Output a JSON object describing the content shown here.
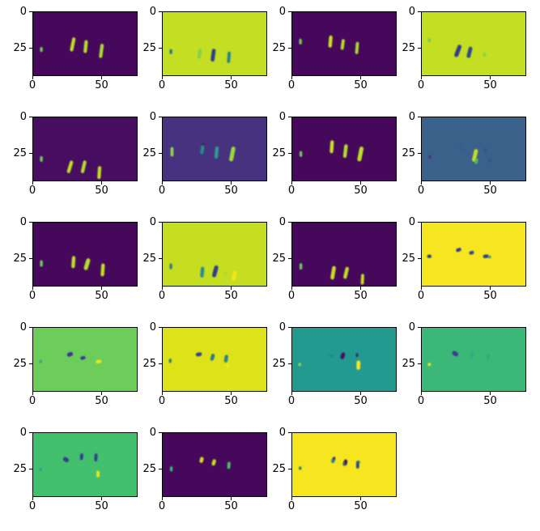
{
  "figure": {
    "kind": "matplotlib-figure",
    "background": "#ffffff",
    "grid": {
      "rows": 5,
      "cols": 4,
      "panel_count": 19
    }
  },
  "chart_data": {
    "type": "heatmap",
    "description": "Grid of 19 imshow panels (5 rows x 4 cols, last row 3 panels) showing small feature-map images in viridis colormap. Each panel has short stroke-like activations near x=6, 29, 39, 51.",
    "xticks": [
      0,
      50
    ],
    "yticks": [
      0,
      25
    ],
    "xtick_labels": [
      "0",
      "50"
    ],
    "ytick_labels": [
      "0",
      "25"
    ],
    "x_extent": [
      0,
      76
    ],
    "y_extent": [
      0,
      44
    ],
    "legend": "none",
    "grid_lines": false,
    "panels": [
      {
        "row": 0,
        "col": 0,
        "bg": "#46085b",
        "blobs": [
          [
            6,
            26,
            2,
            3.5,
            0,
            "#6ece58",
            1
          ],
          [
            29,
            22.5,
            2.5,
            10,
            12,
            "#c0df25",
            1
          ],
          [
            38.5,
            24,
            2.5,
            9,
            6,
            "#b5de2b",
            1
          ],
          [
            50,
            27,
            2.5,
            10,
            8,
            "#a8db34",
            1
          ]
        ]
      },
      {
        "row": 0,
        "col": 1,
        "bg": "#c4de24",
        "blobs": [
          [
            6,
            27.5,
            2,
            3.5,
            0,
            "#2a788e",
            1
          ],
          [
            27,
            29,
            2.5,
            7,
            8,
            "#5ec962",
            0.65
          ],
          [
            37,
            30,
            2.8,
            9,
            8,
            "#2d3e8c",
            1
          ],
          [
            48.5,
            31.5,
            2.3,
            8,
            5,
            "#26828e",
            1
          ]
        ]
      },
      {
        "row": 0,
        "col": 2,
        "bg": "#46085b",
        "blobs": [
          [
            6,
            20.5,
            2,
            4,
            0,
            "#6ece58",
            1
          ],
          [
            28,
            20.5,
            2.6,
            8.5,
            5,
            "#c8e021",
            1
          ],
          [
            37,
            22.5,
            2.3,
            7.5,
            8,
            "#b5de2b",
            1
          ],
          [
            47.5,
            25,
            2.3,
            8.5,
            5,
            "#a8db34",
            1
          ]
        ]
      },
      {
        "row": 0,
        "col": 3,
        "bg": "#c4de24",
        "blobs": [
          [
            5.5,
            19.5,
            2,
            2.5,
            0,
            "#4ac16d",
            0.75
          ],
          [
            26.5,
            27,
            3,
            9,
            22,
            "#2d3e8c",
            1
          ],
          [
            35,
            28,
            2.8,
            8,
            15,
            "#2e4a8c",
            1
          ],
          [
            46,
            29.5,
            2.5,
            3,
            0,
            "#56b870",
            0.45
          ]
        ]
      },
      {
        "row": 1,
        "col": 0,
        "bg": "#470d60",
        "blobs": [
          [
            6,
            29,
            2,
            4,
            0,
            "#6ece58",
            1
          ],
          [
            27,
            34.5,
            2.5,
            9,
            18,
            "#c0df25",
            1
          ],
          [
            37,
            34.5,
            2.5,
            9,
            14,
            "#b5de2b",
            1
          ],
          [
            48.5,
            38.5,
            2.5,
            9,
            4,
            "#c2df23",
            1
          ]
        ]
      },
      {
        "row": 1,
        "col": 1,
        "bg": "#46327e",
        "blobs": [
          [
            6.8,
            24,
            2.2,
            6.5,
            0,
            "#8ed645",
            1
          ],
          [
            29.5,
            19,
            2,
            2.5,
            0,
            "#45095c",
            0.55
          ],
          [
            29,
            22.5,
            2.5,
            6.5,
            8,
            "#26918c",
            0.9
          ],
          [
            39.5,
            24.5,
            2.6,
            8.5,
            5,
            "#2fa08b",
            0.95
          ],
          [
            51,
            25.5,
            3,
            10.5,
            12,
            "#9bd93c",
            1
          ]
        ]
      },
      {
        "row": 1,
        "col": 2,
        "bg": "#46085b",
        "blobs": [
          [
            6.3,
            25.5,
            2,
            4,
            0,
            "#6ece58",
            1
          ],
          [
            29,
            20.5,
            2.6,
            9,
            4,
            "#c8e021",
            1
          ],
          [
            39,
            23.5,
            2.6,
            9.5,
            7,
            "#b5de2b",
            1
          ],
          [
            50,
            25.5,
            3,
            10.5,
            12,
            "#c0df25",
            1
          ]
        ]
      },
      {
        "row": 1,
        "col": 3,
        "bg": "#3a6189",
        "blobs": [
          [
            6,
            27.5,
            2,
            2.2,
            0,
            "#482878",
            0.9
          ],
          [
            29,
            21,
            2.5,
            5,
            10,
            "#315a8c",
            0.55
          ],
          [
            39,
            26.5,
            2.8,
            9,
            14,
            "#c2df23",
            1
          ],
          [
            40,
            30.5,
            2.3,
            4,
            10,
            "#5ec962",
            0.8
          ],
          [
            46.5,
            23,
            2,
            3.5,
            0,
            "#3f3c85",
            0.45
          ],
          [
            50,
            30,
            2,
            3,
            0,
            "#3f3c85",
            0.4
          ]
        ]
      },
      {
        "row": 2,
        "col": 0,
        "bg": "#46085b",
        "blobs": [
          [
            6,
            28.5,
            2,
            4.5,
            0,
            "#6ece58",
            1
          ],
          [
            29.5,
            27.5,
            2.6,
            8.5,
            4,
            "#c0df25",
            1
          ],
          [
            39.5,
            29,
            3,
            8.5,
            18,
            "#b5de2b",
            1
          ],
          [
            51,
            33,
            2.6,
            9,
            4,
            "#c2df23",
            1
          ]
        ]
      },
      {
        "row": 2,
        "col": 1,
        "bg": "#c6de21",
        "blobs": [
          [
            6,
            30.5,
            2,
            4,
            0,
            "#2a788e",
            1
          ],
          [
            29,
            34.5,
            2.6,
            7.5,
            5,
            "#2a8a8e",
            1
          ],
          [
            38.5,
            34,
            3,
            8.5,
            16,
            "#2d3e8c",
            1
          ],
          [
            46,
            36,
            2,
            4,
            0,
            "#8ed645",
            0.4
          ],
          [
            52.5,
            37,
            3,
            7,
            10,
            "#f6e61c",
            0.95
          ]
        ]
      },
      {
        "row": 2,
        "col": 2,
        "bg": "#46085b",
        "blobs": [
          [
            6.3,
            30.5,
            2,
            4.5,
            0,
            "#6ece58",
            1
          ],
          [
            30,
            35,
            2.8,
            9.5,
            10,
            "#c8e021",
            1
          ],
          [
            39.5,
            35,
            2.6,
            8.5,
            14,
            "#c0df25",
            1
          ],
          [
            51.5,
            39.5,
            2.3,
            7.5,
            3,
            "#c2df23",
            1
          ]
        ]
      },
      {
        "row": 2,
        "col": 3,
        "bg": "#f5e61f",
        "blobs": [
          [
            5.5,
            23.5,
            3.2,
            2.3,
            0,
            "#2d3e8c",
            1
          ],
          [
            27,
            19,
            4,
            2.4,
            -20,
            "#2d3e8c",
            1
          ],
          [
            36.5,
            21,
            3.6,
            2.4,
            -15,
            "#32468c",
            1
          ],
          [
            47,
            23.5,
            4.2,
            2.4,
            -5,
            "#2d3e8c",
            1
          ],
          [
            49.8,
            24,
            2,
            2,
            0,
            "#26828e",
            0.85
          ]
        ]
      },
      {
        "row": 3,
        "col": 0,
        "bg": "#6ccd5a",
        "blobs": [
          [
            5.5,
            23.5,
            2,
            2.2,
            0,
            "#2a9d8f",
            0.9
          ],
          [
            27,
            18.5,
            4.4,
            2.8,
            -18,
            "#3b3591",
            1
          ],
          [
            36.5,
            21,
            3.8,
            2.4,
            -12,
            "#383c8f",
            1
          ],
          [
            48,
            23.5,
            4.2,
            2.4,
            -4,
            "#ece51b",
            1
          ]
        ]
      },
      {
        "row": 3,
        "col": 1,
        "bg": "#dde318",
        "blobs": [
          [
            5.5,
            23,
            2,
            3,
            0,
            "#2a788e",
            1
          ],
          [
            26.5,
            18.5,
            4.4,
            2.6,
            -8,
            "#33418d",
            1
          ],
          [
            36.5,
            20.5,
            2.6,
            5,
            18,
            "#2a788e",
            1
          ],
          [
            46.5,
            21.5,
            2.6,
            5.5,
            10,
            "#26828e",
            1
          ],
          [
            47.5,
            26,
            2.2,
            3,
            0,
            "#f8e621",
            0.85
          ]
        ]
      },
      {
        "row": 3,
        "col": 2,
        "bg": "#229a8f",
        "blobs": [
          [
            5.5,
            25.5,
            2.2,
            2.4,
            0,
            "#8ed645",
            1
          ],
          [
            28.5,
            19.5,
            3,
            1.8,
            -10,
            "#1f7a8c",
            0.6
          ],
          [
            37,
            19.5,
            2.8,
            4.8,
            20,
            "#460b5e",
            1
          ],
          [
            47.5,
            19,
            1.8,
            2.6,
            0,
            "#45095c",
            0.8
          ],
          [
            48.5,
            26,
            2.8,
            6.5,
            2,
            "#f8e621",
            1
          ]
        ]
      },
      {
        "row": 3,
        "col": 3,
        "bg": "#3bb878",
        "blobs": [
          [
            5.5,
            25.5,
            2.4,
            2.2,
            0,
            "#e8e419",
            1
          ],
          [
            24.5,
            18,
            4.8,
            3,
            28,
            "#3f3a8f",
            1
          ],
          [
            37,
            18.5,
            2,
            4,
            5,
            "#2f968c",
            0.55
          ],
          [
            48.5,
            20.5,
            2,
            4.5,
            5,
            "#2f968c",
            0.45
          ]
        ]
      },
      {
        "row": 4,
        "col": 0,
        "bg": "#42c06e",
        "blobs": [
          [
            5.5,
            25.5,
            2,
            2.2,
            0,
            "#2a9d8f",
            1
          ],
          [
            24,
            18.5,
            4.4,
            3,
            30,
            "#363a8d",
            1
          ],
          [
            35.5,
            16.5,
            2.3,
            4.6,
            5,
            "#363a8d",
            1
          ],
          [
            46,
            17,
            2.3,
            5.5,
            3,
            "#33418d",
            1
          ],
          [
            47.5,
            28.5,
            2.3,
            4.6,
            0,
            "#eee51a",
            1
          ]
        ]
      },
      {
        "row": 4,
        "col": 1,
        "bg": "#46085b",
        "blobs": [
          [
            6.3,
            25,
            2,
            3.6,
            0,
            "#35b779",
            1
          ],
          [
            28.5,
            18.7,
            2.6,
            4.2,
            14,
            "#d4e21b",
            1
          ],
          [
            37.5,
            20.5,
            2.6,
            4.6,
            18,
            "#c2df23",
            1
          ],
          [
            48.5,
            22.5,
            2.3,
            5,
            4,
            "#4ac16d",
            1
          ]
        ]
      },
      {
        "row": 4,
        "col": 2,
        "bg": "#f5e61f",
        "blobs": [
          [
            5.8,
            24.5,
            2,
            2.4,
            0,
            "#2a788e",
            1
          ],
          [
            30,
            19,
            2.6,
            3.8,
            18,
            "#27818e",
            1
          ],
          [
            30.8,
            17.5,
            1.6,
            2,
            0,
            "#45095c",
            0.85
          ],
          [
            39,
            20.5,
            2.6,
            4.2,
            12,
            "#45095c",
            1
          ],
          [
            37.9,
            21.5,
            1.6,
            3,
            0,
            "#2a788e",
            0.85
          ],
          [
            48,
            22,
            2.2,
            5.4,
            2,
            "#33418d",
            1
          ],
          [
            48.8,
            20.2,
            1.6,
            2,
            0,
            "#26828e",
            0.85
          ]
        ]
      }
    ]
  }
}
